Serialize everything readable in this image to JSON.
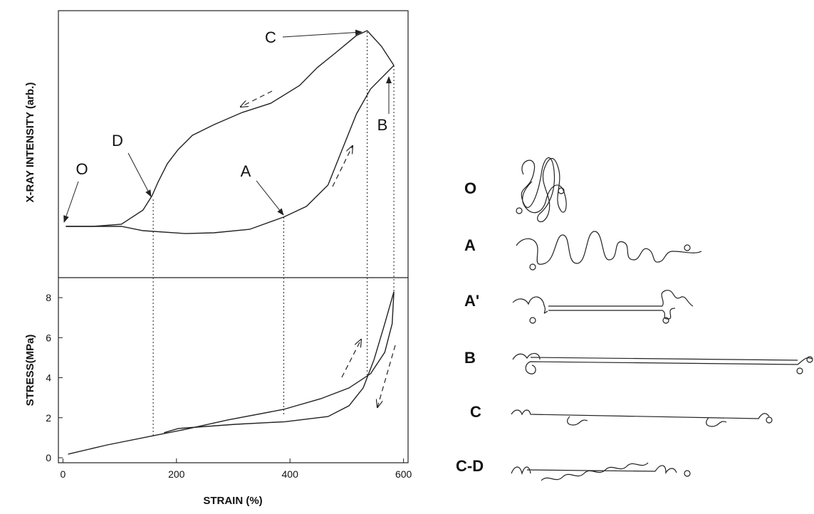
{
  "chart_data": [
    {
      "type": "line",
      "ylabel": "X-RAY INTENSITY (arb.)",
      "xlim": [
        -8,
        608
      ],
      "ylim": [
        0,
        100
      ],
      "annotations": [
        "O",
        "D",
        "A",
        "C",
        "B"
      ],
      "reference_lines": [
        159,
        389,
        536,
        583
      ],
      "color": "#222222",
      "series": [
        {
          "x": [
            5,
            103,
            141,
            216,
            266,
            329,
            389,
            429,
            467,
            492,
            517,
            542,
            583
          ],
          "values": [
            19.2,
            19.2,
            17.6,
            16.5,
            16.8,
            18.1,
            22.7,
            26.7,
            34.7,
            48,
            61.3,
            70.7,
            79.5
          ]
        },
        {
          "x": [
            583,
            561,
            536,
            517,
            479,
            448,
            417,
            366,
            316,
            266,
            228,
            203,
            184,
            168,
            157,
            141,
            103,
            53,
            5
          ],
          "values": [
            79.5,
            86.7,
            92.5,
            90.7,
            84,
            78.7,
            72,
            65.3,
            61.9,
            57.3,
            53.3,
            48,
            42.7,
            36,
            30.7,
            25.3,
            20,
            19.2,
            19.2
          ]
        }
      ]
    },
    {
      "type": "line",
      "ylabel": "STRESS(MPa)",
      "xlabel": "STRAIN (%)",
      "xlim": [
        -8,
        608
      ],
      "ylim": [
        -0.25,
        9
      ],
      "xticks": [
        0,
        200,
        400,
        600
      ],
      "yticks": [
        0,
        2,
        4,
        6,
        8
      ],
      "color": "#222222",
      "series": [
        {
          "x": [
            9,
            78,
            159,
            216,
            291,
            389,
            454,
            504,
            542,
            567,
            580,
            583
          ],
          "values": [
            0.18,
            0.64,
            1.1,
            1.42,
            1.89,
            2.42,
            2.95,
            3.49,
            4.2,
            5.27,
            6.7,
            8.3
          ]
        },
        {
          "x": [
            583,
            567,
            548,
            529,
            504,
            467,
            391,
            304,
            203,
            178
          ],
          "values": [
            8.3,
            6.7,
            4.9,
            3.49,
            2.6,
            2.06,
            1.8,
            1.67,
            1.46,
            1.25
          ]
        }
      ]
    }
  ],
  "schematics": {
    "labels": [
      "O",
      "A",
      "A'",
      "B",
      "C",
      "C-D"
    ]
  }
}
